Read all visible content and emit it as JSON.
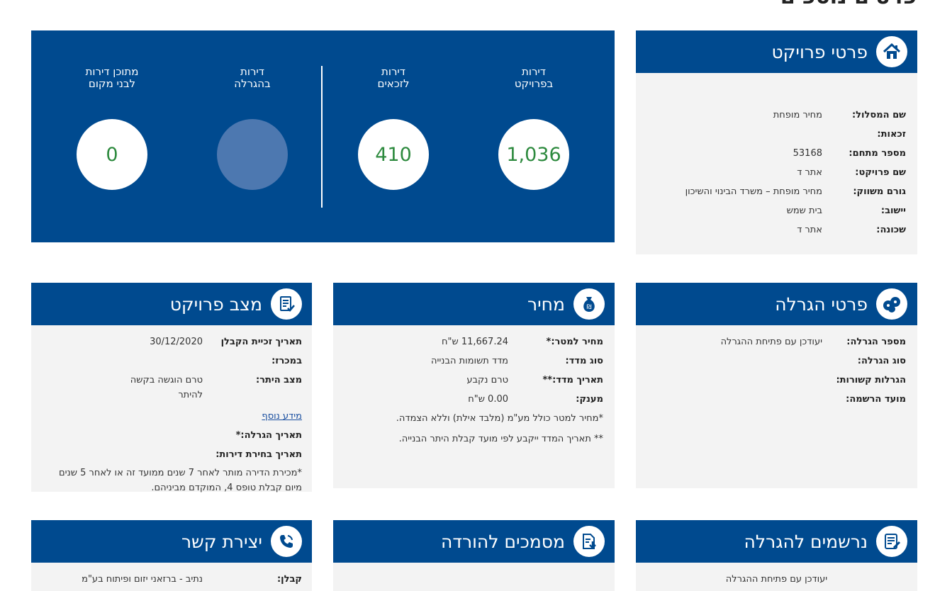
{
  "page_title": "פרטים נוספים",
  "stats": [
    {
      "label_line1": "דירות",
      "label_line2": "בפרויקט",
      "value": "1,036"
    },
    {
      "label_line1": "דירות",
      "label_line2": "לזכאים",
      "value": "410"
    },
    {
      "label_line1": "דירות",
      "label_line2": "בהגרלה",
      "value": ""
    },
    {
      "label_line1": "מתוכן דירות",
      "label_line2": "לבני מקום",
      "value": "0"
    }
  ],
  "project_details": {
    "title": "פרטי פרויקט",
    "rows": [
      {
        "label": "שם המסלול:",
        "value": "מחיר מופחת"
      },
      {
        "label": "זכאות:",
        "value": ""
      },
      {
        "label": "מספר מתחם:",
        "value": "53168"
      },
      {
        "label": "שם פרויקט:",
        "value": "אתר ד"
      },
      {
        "label": "גורם משווק:",
        "value": "מחיר מופחת – משרד הבינוי והשיכון"
      },
      {
        "label": "יישוב:",
        "value": "בית שמש"
      },
      {
        "label": "שכונה:",
        "value": "אתר ד"
      }
    ]
  },
  "lottery_details": {
    "title": "פרטי הגרלה",
    "rows": [
      {
        "label": "מספר הגרלה:",
        "value": "יעודכן עם פתיחת ההגרלה"
      },
      {
        "label": "סוג הגרלה:",
        "value": ""
      },
      {
        "label": "הגרלות קשורות:",
        "value": ""
      },
      {
        "label": "מועד הרשמה:",
        "value": ""
      }
    ],
    "accent_color": "#e52b2b"
  },
  "price": {
    "title": "מחיר",
    "rows": [
      {
        "label": "מחיר למטר:*",
        "value": "11,667.24 ש\"ח"
      },
      {
        "label": "סוג מדד:",
        "value": "מדד תשומות הבנייה"
      },
      {
        "label": "תאריך מדד:**",
        "value": "טרם נקבע"
      },
      {
        "label": "מענק:",
        "value": "0.00 ש\"ח"
      }
    ],
    "note1": "*מחיר למטר כולל מע\"מ (מלבד אילת) וללא הצמדה.",
    "note2": "** תאריך המדד ייקבע לפי מועד קבלת היתר הבנייה."
  },
  "project_status": {
    "title": "מצב פרויקט",
    "contractor_date_label": "תאריך זכיית הקבלן במכרז:",
    "contractor_date_value": "30/12/2020",
    "permit_label": "מצב היתר:",
    "permit_value": "טרם הוגשה בקשה להיתר",
    "more_info": "מידע נוסף",
    "lottery_date_label": "תאריך הגרלה:*",
    "apartment_choice_label": "תאריך בחירת דירות:",
    "note": "*מכירת הדירה מותר לאחר 7 שנים ממועד זה או לאחר 5 שנים מיום קבלת טופס 4, המוקדם מביניהם."
  },
  "registrants": {
    "title": "נרשמים להגרלה",
    "value": "יעודכן עם פתיחת ההגרלה"
  },
  "documents": {
    "title": "מסמכים להורדה"
  },
  "contact": {
    "title": "יצירת קשר",
    "contractor_label": "קבלן:",
    "contractor_value": "נתיב - ברזאני יזום ופיתוח בע\"מ"
  },
  "colors": {
    "primary_blue": "#004a8f",
    "card_bg": "#f3f3f3",
    "number_green": "#2d8a3e"
  },
  "icons": [
    "home-icon",
    "lottery-balls-icon",
    "shekel-bag-icon",
    "document-check-icon",
    "register-list-icon",
    "download-document-icon",
    "phone-icon"
  ]
}
